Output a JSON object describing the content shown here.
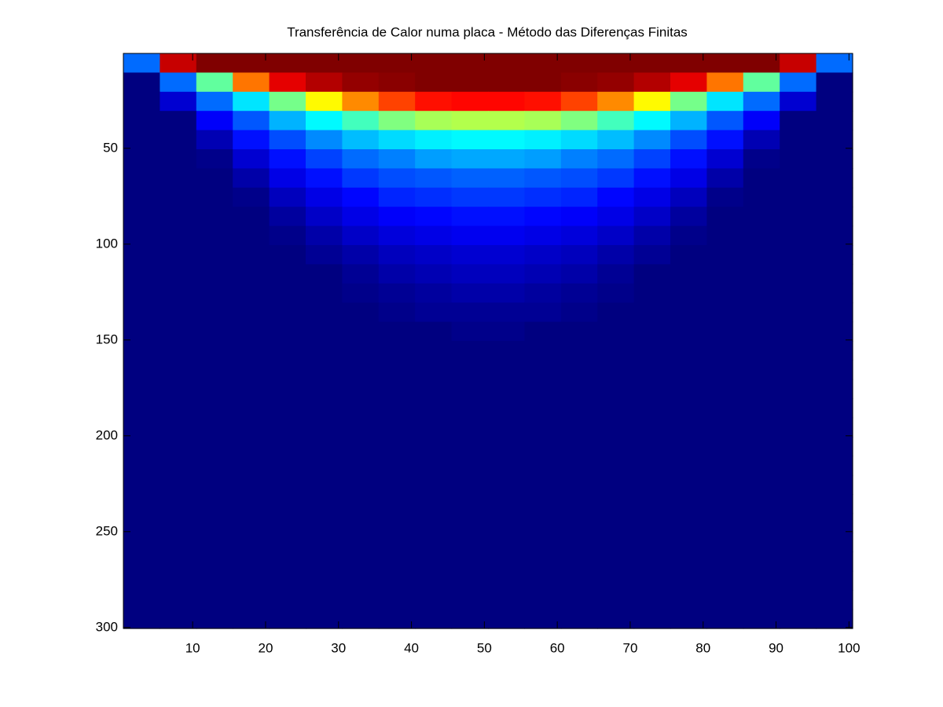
{
  "chart_data": {
    "type": "heatmap",
    "title": "Transferência de Calor numa placa - Método das Diferenças Finitas",
    "x": [
      3,
      8,
      13,
      18,
      23,
      28,
      33,
      38,
      43,
      48,
      53,
      58,
      63,
      68,
      73,
      78,
      83,
      88,
      93,
      98
    ],
    "y": [
      5.5,
      15.5,
      25.5,
      35.5,
      45.5,
      55.5,
      65.5,
      75.5,
      85.5,
      95.5,
      105.5,
      115.5,
      125.5,
      135.5,
      145.5,
      155.5,
      165.5,
      175.5,
      185.5,
      195.5,
      205.5,
      215.5,
      225.5,
      235.5,
      245.5,
      255.5,
      265.5,
      275.5,
      285.5,
      295.5
    ],
    "z": [
      [
        0.23,
        0.93,
        1,
        1,
        1,
        1,
        1,
        1,
        1,
        1,
        1,
        1,
        1,
        1,
        1,
        1,
        1,
        1,
        0.93,
        0.23
      ],
      [
        0,
        0.23,
        0.47,
        0.76,
        0.9,
        0.95,
        0.98,
        0.99,
        1,
        1,
        1,
        1,
        0.99,
        0.98,
        0.95,
        0.9,
        0.76,
        0.47,
        0.23,
        0
      ],
      [
        0,
        0.08,
        0.23,
        0.35,
        0.49,
        0.63,
        0.74,
        0.81,
        0.86,
        0.87,
        0.87,
        0.86,
        0.81,
        0.74,
        0.63,
        0.49,
        0.35,
        0.23,
        0.08,
        0
      ],
      [
        0,
        0,
        0.12,
        0.21,
        0.3,
        0.37,
        0.44,
        0.5,
        0.54,
        0.55,
        0.55,
        0.54,
        0.5,
        0.44,
        0.37,
        0.3,
        0.21,
        0.12,
        0,
        0
      ],
      [
        0,
        0,
        0.05,
        0.14,
        0.2,
        0.26,
        0.31,
        0.34,
        0.36,
        0.37,
        0.37,
        0.36,
        0.34,
        0.31,
        0.26,
        0.2,
        0.14,
        0.05,
        0,
        0
      ],
      [
        0,
        0,
        0.01,
        0.08,
        0.14,
        0.19,
        0.23,
        0.25,
        0.28,
        0.29,
        0.29,
        0.28,
        0.25,
        0.23,
        0.19,
        0.14,
        0.08,
        0.01,
        0,
        0
      ],
      [
        0,
        0,
        0,
        0.04,
        0.1,
        0.14,
        0.18,
        0.2,
        0.21,
        0.22,
        0.22,
        0.21,
        0.2,
        0.18,
        0.14,
        0.1,
        0.04,
        0,
        0,
        0
      ],
      [
        0,
        0,
        0,
        0.01,
        0.06,
        0.1,
        0.13,
        0.16,
        0.17,
        0.18,
        0.18,
        0.17,
        0.16,
        0.13,
        0.1,
        0.06,
        0.01,
        0,
        0,
        0
      ],
      [
        0,
        0,
        0,
        0,
        0.03,
        0.07,
        0.1,
        0.12,
        0.13,
        0.14,
        0.14,
        0.13,
        0.12,
        0.1,
        0.07,
        0.03,
        0,
        0,
        0,
        0
      ],
      [
        0,
        0,
        0,
        0,
        0.01,
        0.04,
        0.07,
        0.09,
        0.1,
        0.11,
        0.11,
        0.1,
        0.09,
        0.07,
        0.04,
        0.01,
        0,
        0,
        0,
        0
      ],
      [
        0,
        0,
        0,
        0,
        0,
        0.02,
        0.04,
        0.06,
        0.07,
        0.08,
        0.08,
        0.07,
        0.06,
        0.04,
        0.02,
        0,
        0,
        0,
        0,
        0
      ],
      [
        0,
        0,
        0,
        0,
        0,
        0,
        0.02,
        0.04,
        0.05,
        0.06,
        0.06,
        0.05,
        0.04,
        0.02,
        0,
        0,
        0,
        0,
        0,
        0
      ],
      [
        0,
        0,
        0,
        0,
        0,
        0,
        0.01,
        0.02,
        0.03,
        0.04,
        0.04,
        0.03,
        0.02,
        0.01,
        0,
        0,
        0,
        0,
        0,
        0
      ],
      [
        0,
        0,
        0,
        0,
        0,
        0,
        0,
        0.01,
        0.02,
        0.02,
        0.02,
        0.02,
        0.01,
        0,
        0,
        0,
        0,
        0,
        0,
        0
      ],
      [
        0,
        0,
        0,
        0,
        0,
        0,
        0,
        0,
        0,
        0.01,
        0.01,
        0,
        0,
        0,
        0,
        0,
        0,
        0,
        0,
        0
      ],
      [
        0,
        0,
        0,
        0,
        0,
        0,
        0,
        0,
        0,
        0,
        0,
        0,
        0,
        0,
        0,
        0,
        0,
        0,
        0,
        0
      ],
      [
        0,
        0,
        0,
        0,
        0,
        0,
        0,
        0,
        0,
        0,
        0,
        0,
        0,
        0,
        0,
        0,
        0,
        0,
        0,
        0
      ],
      [
        0,
        0,
        0,
        0,
        0,
        0,
        0,
        0,
        0,
        0,
        0,
        0,
        0,
        0,
        0,
        0,
        0,
        0,
        0,
        0
      ],
      [
        0,
        0,
        0,
        0,
        0,
        0,
        0,
        0,
        0,
        0,
        0,
        0,
        0,
        0,
        0,
        0,
        0,
        0,
        0,
        0
      ],
      [
        0,
        0,
        0,
        0,
        0,
        0,
        0,
        0,
        0,
        0,
        0,
        0,
        0,
        0,
        0,
        0,
        0,
        0,
        0,
        0
      ],
      [
        0,
        0,
        0,
        0,
        0,
        0,
        0,
        0,
        0,
        0,
        0,
        0,
        0,
        0,
        0,
        0,
        0,
        0,
        0,
        0
      ],
      [
        0,
        0,
        0,
        0,
        0,
        0,
        0,
        0,
        0,
        0,
        0,
        0,
        0,
        0,
        0,
        0,
        0,
        0,
        0,
        0
      ],
      [
        0,
        0,
        0,
        0,
        0,
        0,
        0,
        0,
        0,
        0,
        0,
        0,
        0,
        0,
        0,
        0,
        0,
        0,
        0,
        0
      ],
      [
        0,
        0,
        0,
        0,
        0,
        0,
        0,
        0,
        0,
        0,
        0,
        0,
        0,
        0,
        0,
        0,
        0,
        0,
        0,
        0
      ],
      [
        0,
        0,
        0,
        0,
        0,
        0,
        0,
        0,
        0,
        0,
        0,
        0,
        0,
        0,
        0,
        0,
        0,
        0,
        0,
        0
      ],
      [
        0,
        0,
        0,
        0,
        0,
        0,
        0,
        0,
        0,
        0,
        0,
        0,
        0,
        0,
        0,
        0,
        0,
        0,
        0,
        0
      ],
      [
        0,
        0,
        0,
        0,
        0,
        0,
        0,
        0,
        0,
        0,
        0,
        0,
        0,
        0,
        0,
        0,
        0,
        0,
        0,
        0
      ],
      [
        0,
        0,
        0,
        0,
        0,
        0,
        0,
        0,
        0,
        0,
        0,
        0,
        0,
        0,
        0,
        0,
        0,
        0,
        0,
        0
      ],
      [
        0,
        0,
        0,
        0,
        0,
        0,
        0,
        0,
        0,
        0,
        0,
        0,
        0,
        0,
        0,
        0,
        0,
        0,
        0,
        0
      ],
      [
        0,
        0,
        0,
        0,
        0,
        0,
        0,
        0,
        0,
        0,
        0,
        0,
        0,
        0,
        0,
        0,
        0,
        0,
        0,
        0
      ]
    ],
    "colormap": "jet",
    "clim": [
      0,
      1
    ],
    "xlim": [
      0.5,
      100.5
    ],
    "xticks": [
      10,
      20,
      30,
      40,
      50,
      60,
      70,
      80,
      90,
      100
    ],
    "ylim": [
      0.5,
      300.5
    ],
    "yticks": [
      50,
      100,
      150,
      200,
      250,
      300
    ],
    "y_reversed": true
  }
}
